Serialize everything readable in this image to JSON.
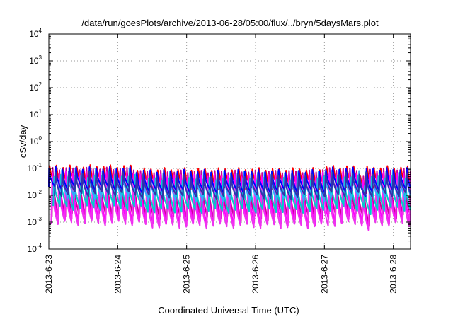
{
  "chart_data": {
    "type": "line",
    "title": "/data/run/goesPlots/archive/2013-06-28/05:00/flux/../bryn/5daysMars.plot",
    "xlabel": "Coordinated Universal Time (UTC)",
    "ylabel": "cSv/day",
    "yscale": "log",
    "ylim": [
      0.0001,
      10000
    ],
    "y_ticks": [
      {
        "base": "10",
        "exp": "-4"
      },
      {
        "base": "10",
        "exp": "-3"
      },
      {
        "base": "10",
        "exp": "-2"
      },
      {
        "base": "10",
        "exp": "-1"
      },
      {
        "base": "10",
        "exp": "0"
      },
      {
        "base": "10",
        "exp": "1"
      },
      {
        "base": "10",
        "exp": "2"
      },
      {
        "base": "10",
        "exp": "3"
      },
      {
        "base": "10",
        "exp": "4"
      }
    ],
    "x_ticks": [
      "2013-6-23",
      "2013-6-24",
      "2013-6-25",
      "2013-6-26",
      "2013-6-27",
      "2013-6-28"
    ],
    "xlim": [
      "2013-06-23T00:00",
      "2013-06-28T06:00"
    ],
    "grid": true,
    "legend": "none",
    "series": [
      {
        "color": "#ff0000",
        "peak": 0.105,
        "trough": 0.022,
        "phase": 0.0
      },
      {
        "color": "#cc0099",
        "peak": 0.085,
        "trough": 0.0016,
        "phase": 0.55
      },
      {
        "color": "#ff00ff",
        "peak": 0.06,
        "trough": 0.001,
        "phase": 0.6
      },
      {
        "color": "#ee33ee",
        "peak": 0.03,
        "trough": 0.0008,
        "phase": 0.65
      },
      {
        "color": "#00cccc",
        "peak": 0.045,
        "trough": 0.003,
        "phase": 0.35
      },
      {
        "color": "#33aaff",
        "peak": 0.075,
        "trough": 0.008,
        "phase": 0.2
      },
      {
        "color": "#0000ff",
        "peak": 0.09,
        "trough": 0.015,
        "phase": 0.1
      },
      {
        "color": "#3333aa",
        "peak": 0.06,
        "trough": 0.01,
        "phase": 0.15
      }
    ],
    "cycles_per_day": 10.2,
    "x_start": "2013-06-23T00:00",
    "x_end": "2013-06-28T06:00",
    "modulation": [
      {
        "from": "2013-06-23T00:00",
        "to": "2013-06-24T06:00",
        "factor": 1.15
      },
      {
        "from": "2013-06-24T06:00",
        "to": "2013-06-26T23:00",
        "factor": 0.9
      },
      {
        "from": "2013-06-26T23:00",
        "to": "2013-06-27T12:00",
        "factor": 1.1
      },
      {
        "from": "2013-06-27T12:00",
        "to": "2013-06-27T14:00",
        "factor": 0.55
      },
      {
        "from": "2013-06-27T14:00",
        "to": "2013-06-28T06:00",
        "factor": 1.05
      }
    ]
  }
}
